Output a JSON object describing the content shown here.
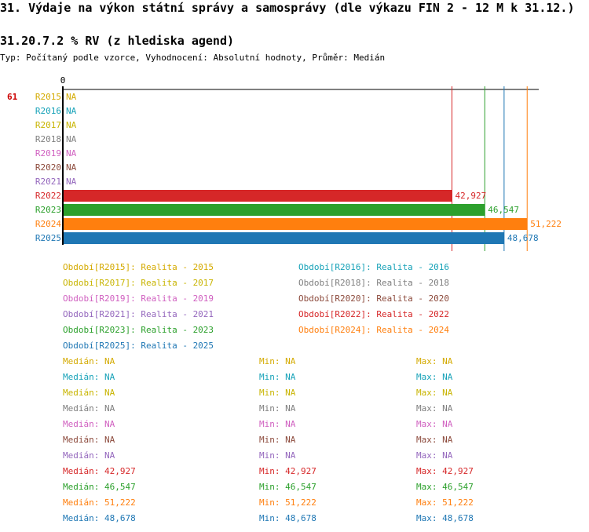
{
  "header": {
    "title": "31. Výdaje na výkon státní správy a samosprávy (dle výkazu FIN 2 - 12 M k 31.12.)",
    "subtitle": "31.20.7.2 % RV (z hlediska agend)",
    "type_line": "Typ: Počítaný podle vzorce, Vyhodnocení: Absolutní hodnoty, Průměr: Medián"
  },
  "chart_data": {
    "type": "bar",
    "orientation": "horizontal",
    "row_marker": "61",
    "axis_zero_label": "0",
    "xlim": [
      0,
      52500
    ],
    "categories": [
      "R2015",
      "R2016",
      "R2017",
      "R2018",
      "R2019",
      "R2020",
      "R2021",
      "R2022",
      "R2023",
      "R2024",
      "R2025"
    ],
    "values": [
      null,
      null,
      null,
      null,
      null,
      null,
      null,
      42927,
      46547,
      51222,
      48678
    ],
    "value_labels": [
      "NA",
      "NA",
      "NA",
      "NA",
      "NA",
      "NA",
      "NA",
      "42,927",
      "46,547",
      "51,222",
      "48,678"
    ],
    "colors": [
      "#d4aa00",
      "#17a2b8",
      "#c8b400",
      "#7f7f7f",
      "#d060c0",
      "#8c4a3c",
      "#9467bd",
      "#d62728",
      "#2ca02c",
      "#ff7f0e",
      "#1f77b4"
    ],
    "legend": [
      {
        "key": "Období[R2015]",
        "label": "Realita - 2015"
      },
      {
        "key": "Období[R2016]",
        "label": "Realita - 2016"
      },
      {
        "key": "Období[R2017]",
        "label": "Realita - 2017"
      },
      {
        "key": "Období[R2018]",
        "label": "Realita - 2018"
      },
      {
        "key": "Období[R2019]",
        "label": "Realita - 2019"
      },
      {
        "key": "Období[R2020]",
        "label": "Realita - 2020"
      },
      {
        "key": "Období[R2021]",
        "label": "Realita - 2021"
      },
      {
        "key": "Období[R2022]",
        "label": "Realita - 2022"
      },
      {
        "key": "Období[R2023]",
        "label": "Realita - 2023"
      },
      {
        "key": "Období[R2024]",
        "label": "Realita - 2024"
      },
      {
        "key": "Období[R2025]",
        "label": "Realita - 2025"
      }
    ],
    "stats": [
      {
        "median": "Medián: NA",
        "min": "Min: NA",
        "max": "Max: NA"
      },
      {
        "median": "Medián: NA",
        "min": "Min: NA",
        "max": "Max: NA"
      },
      {
        "median": "Medián: NA",
        "min": "Min: NA",
        "max": "Max: NA"
      },
      {
        "median": "Medián: NA",
        "min": "Min: NA",
        "max": "Max: NA"
      },
      {
        "median": "Medián: NA",
        "min": "Min: NA",
        "max": "Max: NA"
      },
      {
        "median": "Medián: NA",
        "min": "Min: NA",
        "max": "Max: NA"
      },
      {
        "median": "Medián: NA",
        "min": "Min: NA",
        "max": "Max: NA"
      },
      {
        "median": "Medián: 42,927",
        "min": "Min: 42,927",
        "max": "Max: 42,927"
      },
      {
        "median": "Medián: 46,547",
        "min": "Min: 46,547",
        "max": "Max: 46,547"
      },
      {
        "median": "Medián: 51,222",
        "min": "Min: 51,222",
        "max": "Max: 51,222"
      },
      {
        "median": "Medián: 48,678",
        "min": "Min: 48,678",
        "max": "Max: 48,678"
      }
    ]
  }
}
